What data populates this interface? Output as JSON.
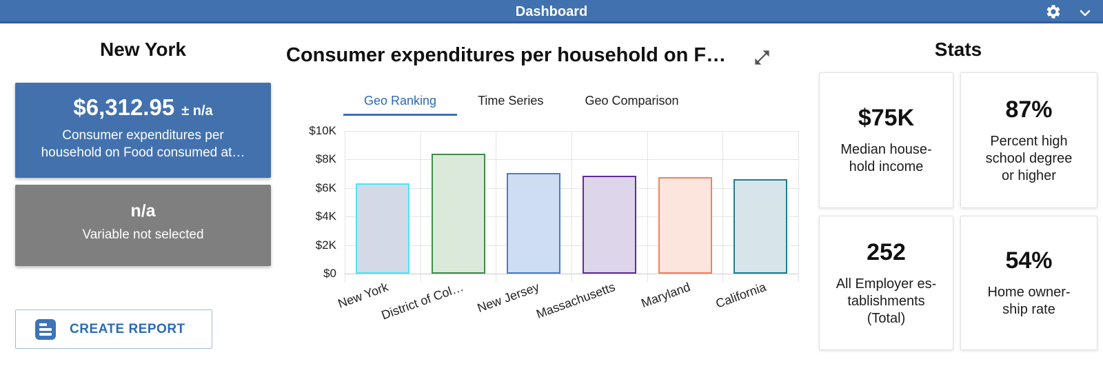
{
  "header": {
    "title": "Dashboard"
  },
  "colors": {
    "header_blue": "#4171ae",
    "header_border": "#2e5c9e",
    "primary_card_blue": "#4271ae",
    "secondary_card_gray": "#7f7f7f",
    "active_tab_blue": "#3069b0",
    "button_blue": "#2d6ab5"
  },
  "icons": [
    "gear-icon",
    "chevron-down-icon",
    "expand-icon",
    "report-icon"
  ],
  "left_panel": {
    "region_title": "New York",
    "primary_card": {
      "value": "$6,312.95",
      "uncertainty": "± n/a",
      "label": "Consumer expenditures per\nhousehold on Food consumed at…"
    },
    "secondary_card": {
      "value": "n/a",
      "label": "Variable not selected"
    },
    "create_report": {
      "label": "CREATE REPORT"
    }
  },
  "chart_panel": {
    "title": "Consumer expenditures per household on F…",
    "active_tab": "Geo Ranking",
    "tabs": [
      {
        "label": "Geo Ranking"
      },
      {
        "label": "Time Series"
      },
      {
        "label": "Geo Comparison"
      }
    ]
  },
  "chart_data": {
    "type": "bar",
    "title": "Consumer expenditures per household on F…",
    "categories": [
      "New York",
      "District of Col…",
      "New Jersey",
      "Massachusetts",
      "Maryland",
      "California"
    ],
    "values": [
      6313,
      8400,
      7050,
      6850,
      6780,
      6620
    ],
    "xlabel": "",
    "ylabel": "",
    "ylim": [
      0,
      10000
    ],
    "yticks": [
      0,
      2000,
      4000,
      6000,
      8000,
      10000
    ],
    "ytick_labels": [
      "$0",
      "$2K",
      "$4K",
      "$6K",
      "$8K",
      "$10K"
    ],
    "grid": true,
    "legend": false,
    "bar_styles": [
      {
        "fill": "#d3d9e7",
        "border": "#4de4f2"
      },
      {
        "fill": "#dbe9db",
        "border": "#3f8b4a"
      },
      {
        "fill": "#cfddf2",
        "border": "#4a7bc8"
      },
      {
        "fill": "#ddd5e9",
        "border": "#5e2f92"
      },
      {
        "fill": "#fbe5dc",
        "border": "#ef8263"
      },
      {
        "fill": "#d7e5ea",
        "border": "#19808f"
      }
    ]
  },
  "stats_panel": {
    "title": "Stats",
    "cards": [
      {
        "value": "$75K",
        "label": "Median house-\nhold income"
      },
      {
        "value": "87%",
        "label": "Percent high\nschool degree\nor higher"
      },
      {
        "value": "252",
        "label": "All Employer es-\ntablishments\n(Total)"
      },
      {
        "value": "54%",
        "label": "Home owner-\nship rate"
      }
    ]
  }
}
